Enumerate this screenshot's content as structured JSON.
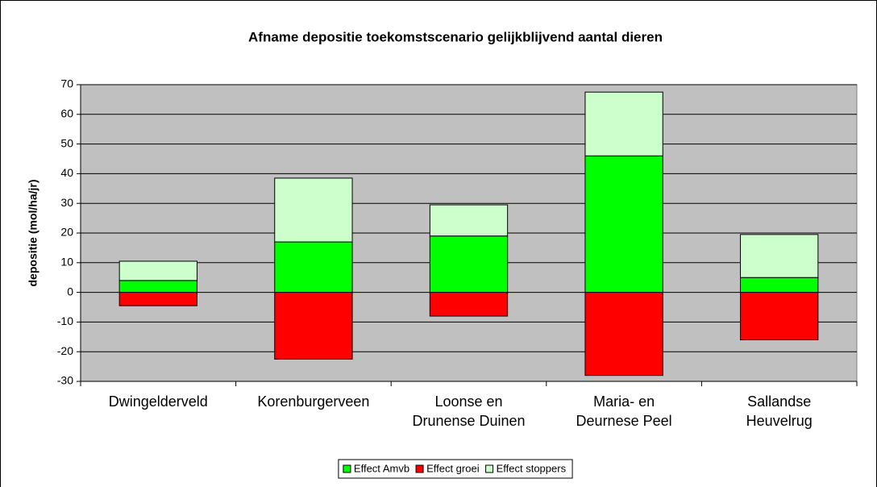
{
  "chart_data": {
    "type": "stacked-bar",
    "title": "Afname depositie toekomstscenario gelijkblijvend aantal dieren",
    "y_label": "depositie (mol/ha/jr)",
    "categories": [
      [
        "Dwingelderveld"
      ],
      [
        "Korenburgerveen"
      ],
      [
        "Loonse en",
        "Drunense Duinen"
      ],
      [
        "Maria- en",
        "Deurnese Peel"
      ],
      [
        "Sallandse",
        "Heuvelrug"
      ]
    ],
    "series": [
      {
        "name": "Effect Amvb",
        "color": "#00ff00",
        "values": [
          4,
          17,
          19,
          46,
          5
        ]
      },
      {
        "name": "Effect groei",
        "color": "#ff0000",
        "values": [
          -4.5,
          -22.5,
          -8,
          -28,
          -16
        ]
      },
      {
        "name": "Effect stoppers",
        "color": "#ccffcc",
        "values": [
          6.5,
          21.5,
          10.5,
          21.5,
          14.5
        ]
      }
    ],
    "ylim": [
      -30,
      70
    ],
    "yticks": [
      -30,
      -20,
      -10,
      0,
      10,
      20,
      30,
      40,
      50,
      60,
      70
    ],
    "grid": true,
    "legend": "bottom"
  }
}
